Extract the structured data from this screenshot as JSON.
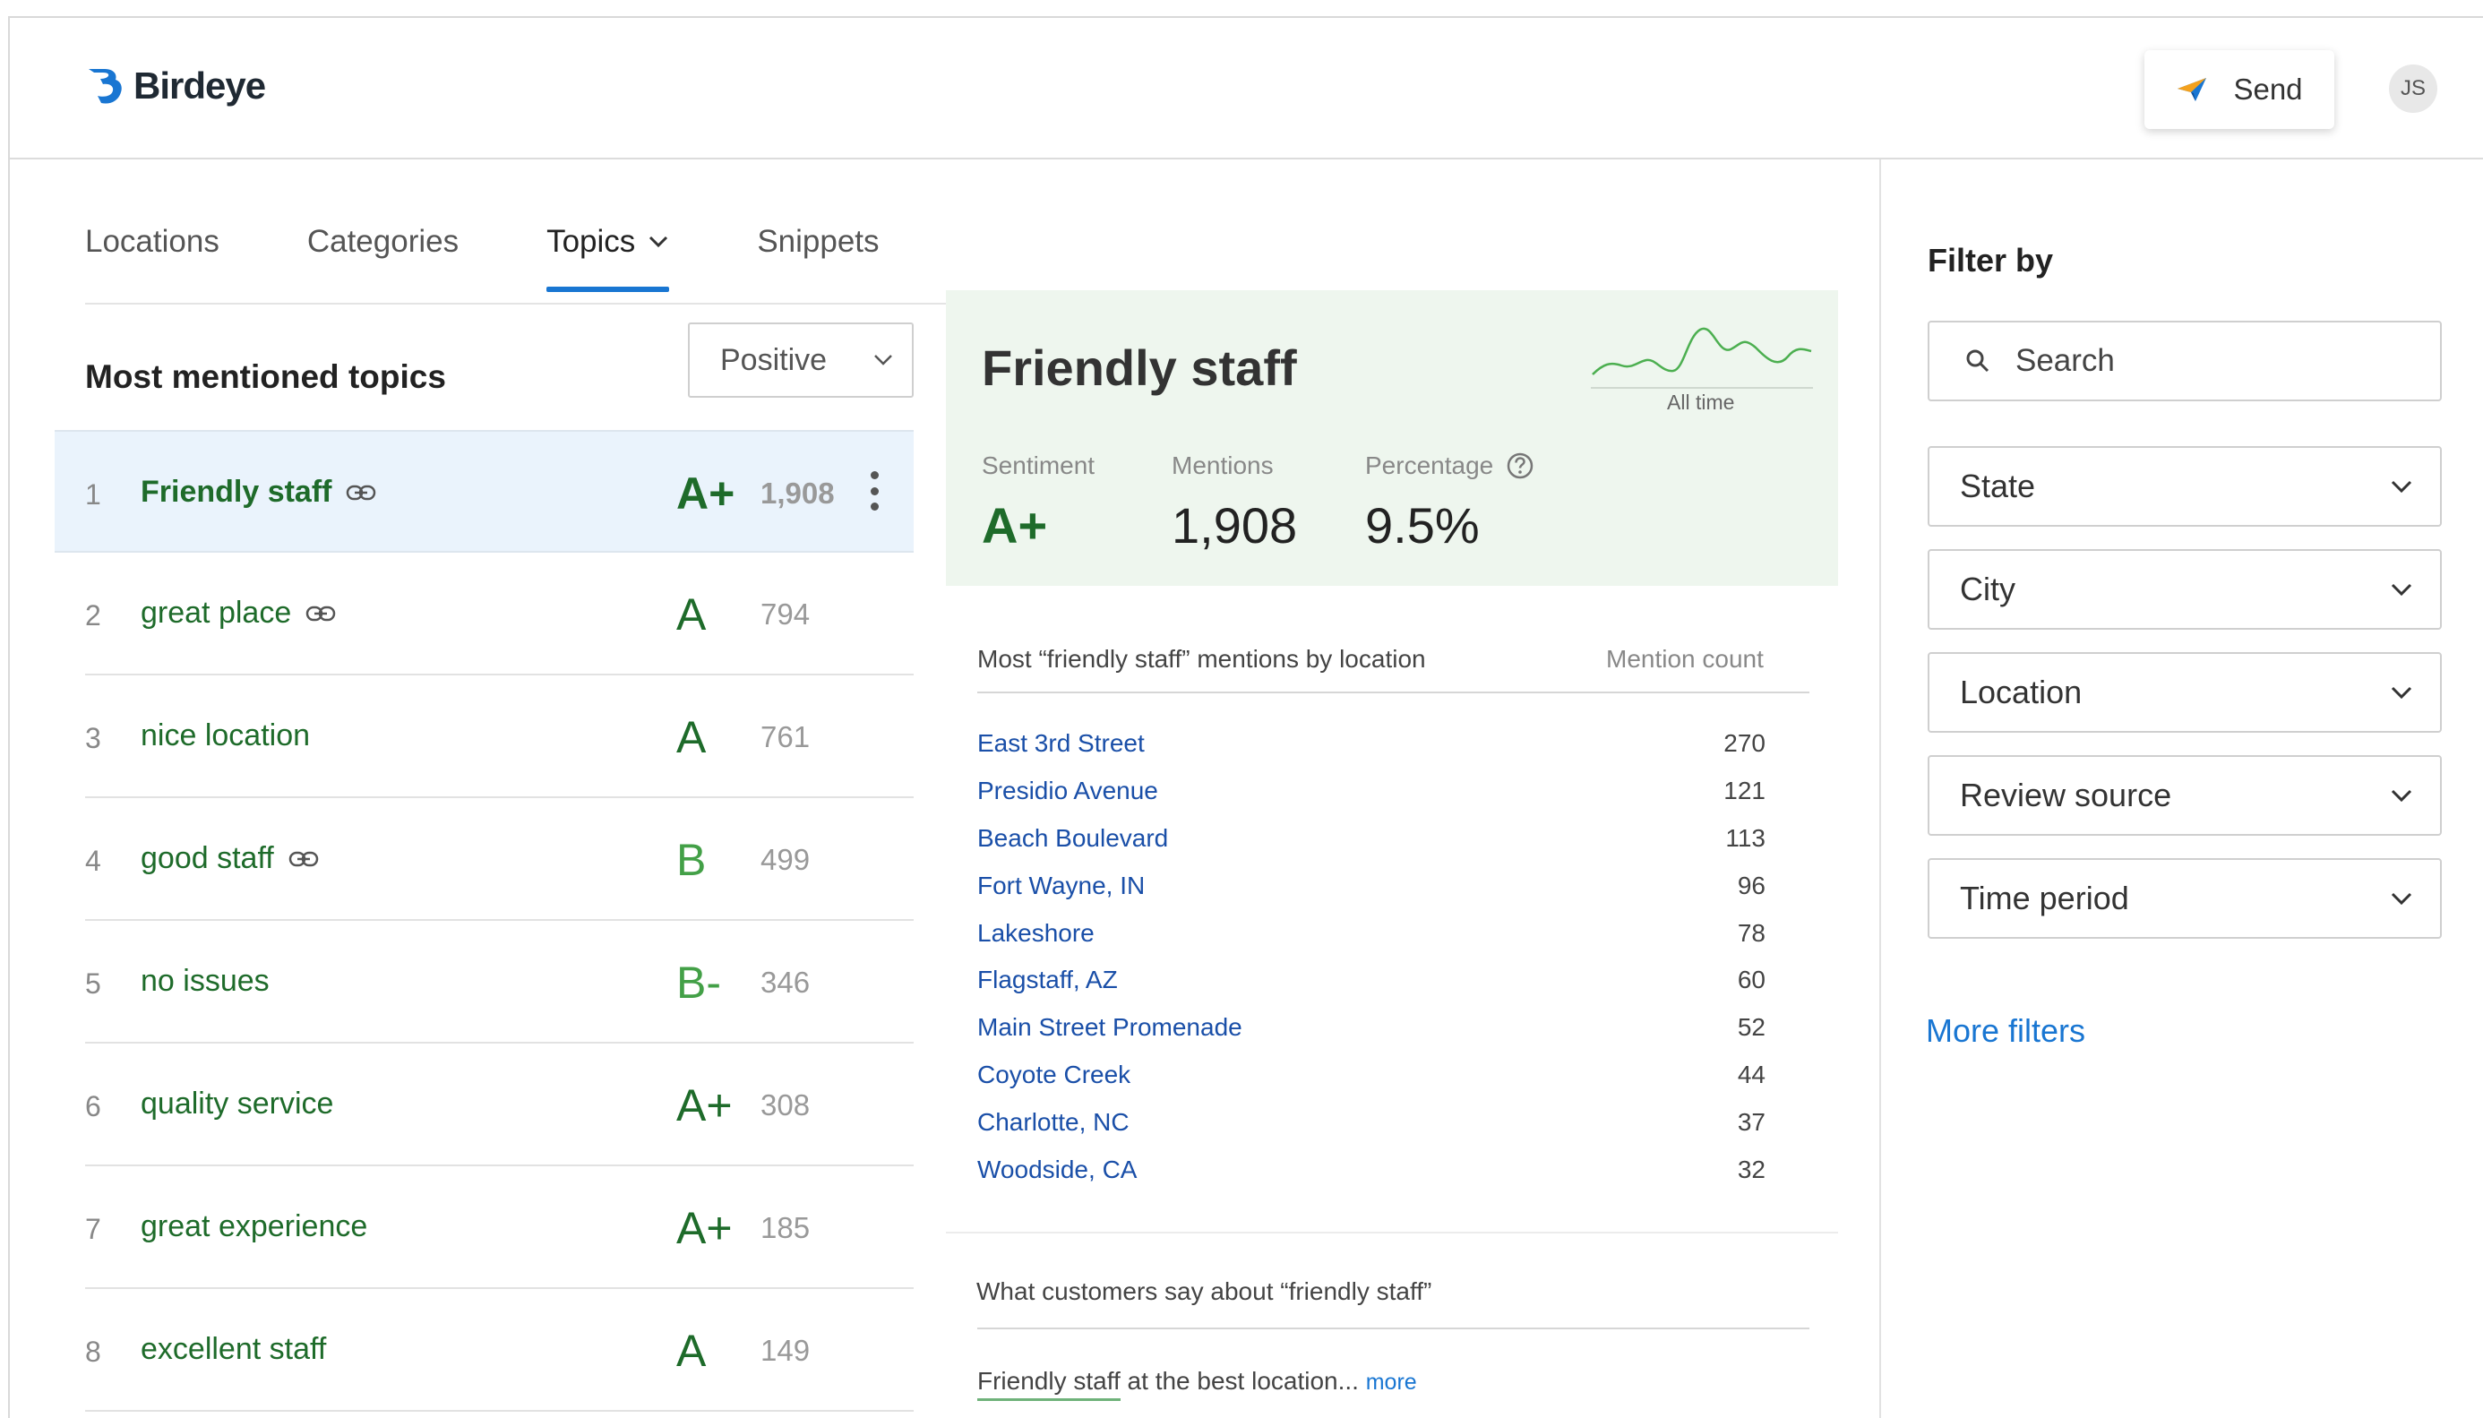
{
  "app": {
    "name": "Birdeye"
  },
  "header": {
    "send_label": "Send",
    "user_initials": "JS"
  },
  "tabs": [
    {
      "label": "Locations",
      "active": false
    },
    {
      "label": "Categories",
      "active": false
    },
    {
      "label": "Topics",
      "active": true
    },
    {
      "label": "Snippets",
      "active": false
    }
  ],
  "list": {
    "title": "Most mentioned topics",
    "sentiment_filter": "Positive",
    "topics": [
      {
        "rank": "1",
        "name": "Friendly staff",
        "grade": "A+",
        "count": "1,908",
        "linked": true
      },
      {
        "rank": "2",
        "name": "great place",
        "grade": "A",
        "count": "794",
        "linked": true
      },
      {
        "rank": "3",
        "name": "nice location",
        "grade": "A",
        "count": "761",
        "linked": false
      },
      {
        "rank": "4",
        "name": "good staff",
        "grade": "B",
        "count": "499",
        "linked": true
      },
      {
        "rank": "5",
        "name": "no issues",
        "grade": "B-",
        "count": "346",
        "linked": false
      },
      {
        "rank": "6",
        "name": "quality service",
        "grade": "A+",
        "count": "308",
        "linked": false
      },
      {
        "rank": "7",
        "name": "great experience",
        "grade": "A+",
        "count": "185",
        "linked": false
      },
      {
        "rank": "8",
        "name": "excellent staff",
        "grade": "A",
        "count": "149",
        "linked": false
      }
    ]
  },
  "detail": {
    "title": "Friendly staff",
    "trend_label": "All time",
    "stats": {
      "sentiment_label": "Sentiment",
      "sentiment_value": "A+",
      "mentions_label": "Mentions",
      "mentions_value": "1,908",
      "percentage_label": "Percentage",
      "percentage_value": "9.5%"
    },
    "locations_heading": "Most “friendly staff” mentions by location",
    "locations_count_heading": "Mention count",
    "locations": [
      {
        "name": "East 3rd Street",
        "count": "270"
      },
      {
        "name": "Presidio Avenue",
        "count": "121"
      },
      {
        "name": "Beach Boulevard",
        "count": "113"
      },
      {
        "name": "Fort Wayne, IN",
        "count": "96"
      },
      {
        "name": "Lakeshore",
        "count": "78"
      },
      {
        "name": "Flagstaff, AZ",
        "count": "60"
      },
      {
        "name": "Main Street Promenade",
        "count": "52"
      },
      {
        "name": "Coyote Creek",
        "count": "44"
      },
      {
        "name": "Charlotte, NC",
        "count": "37"
      },
      {
        "name": "Woodside, CA",
        "count": "32"
      }
    ],
    "say_heading": "What customers say about “friendly staff”",
    "snippet": {
      "highlight": "Friendly staff",
      "rest": " at the best location...",
      "more_label": "more"
    }
  },
  "filters": {
    "title": "Filter by",
    "search_placeholder": "Search",
    "dropdowns": [
      "State",
      "City",
      "Location",
      "Review source",
      "Time period"
    ],
    "more_label": "More filters"
  },
  "colors": {
    "accent": "#1976d2",
    "grade_dark": "#1e6b2a",
    "grade_light": "#43a047",
    "link": "#1a4fa8",
    "detail_bg": "#eef6ee",
    "selected_row_bg": "#eaf3fc"
  }
}
